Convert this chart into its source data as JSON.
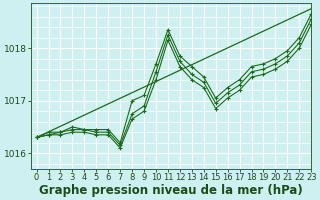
{
  "title": "Graphe pression niveau de la mer (hPa)",
  "bg_color": "#cff0f0",
  "grid_color": "#ffffff",
  "line_color": "#1a6b1a",
  "marker_color": "#1a6b1a",
  "ylim": [
    1015.7,
    1018.85
  ],
  "xlim": [
    -0.5,
    23
  ],
  "yticks": [
    1016,
    1017,
    1018
  ],
  "xticks": [
    0,
    1,
    2,
    3,
    4,
    5,
    6,
    7,
    8,
    9,
    10,
    11,
    12,
    13,
    14,
    15,
    16,
    17,
    18,
    19,
    20,
    21,
    22,
    23
  ],
  "tick_fontsize": 6.0,
  "title_fontsize": 8.5,
  "series": [
    [
      1016.3,
      1016.35,
      1016.4,
      1016.45,
      1016.45,
      1016.4,
      1016.4,
      1016.15,
      1016.75,
      1016.9,
      1017.55,
      1018.25,
      1017.75,
      1017.5,
      1017.35,
      1016.95,
      1017.15,
      1017.3,
      1017.55,
      1017.6,
      1017.7,
      1017.85,
      1018.1,
      1018.55
    ],
    [
      1016.3,
      1016.4,
      1016.4,
      1016.5,
      1016.45,
      1016.45,
      1016.45,
      1016.2,
      1017.0,
      1017.1,
      1017.7,
      1018.35,
      1017.85,
      1017.65,
      1017.45,
      1017.05,
      1017.25,
      1017.4,
      1017.65,
      1017.7,
      1017.8,
      1017.95,
      1018.2,
      1018.65
    ],
    [
      1016.3,
      1016.35,
      1016.35,
      1016.4,
      1016.4,
      1016.35,
      1016.35,
      1016.1,
      1016.65,
      1016.8,
      1017.4,
      1018.15,
      1017.65,
      1017.4,
      1017.25,
      1016.85,
      1017.05,
      1017.2,
      1017.45,
      1017.5,
      1017.6,
      1017.75,
      1018.0,
      1018.45
    ]
  ],
  "linear_series": [
    [
      0,
      1016.3
    ],
    [
      23,
      1018.75
    ]
  ]
}
